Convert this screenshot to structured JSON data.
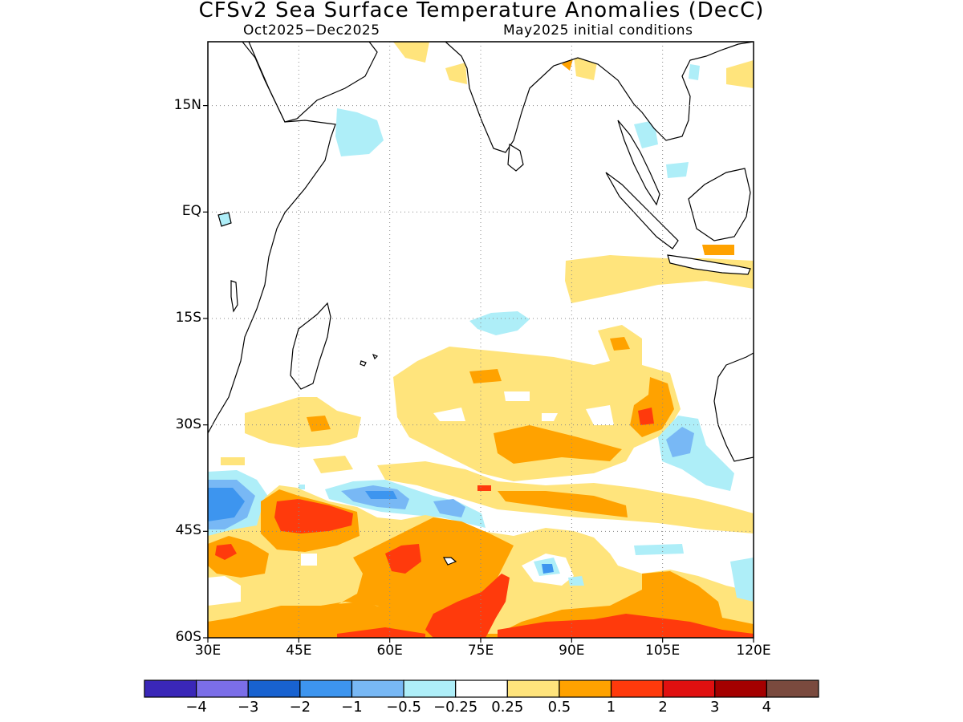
{
  "title": "CFSv2 Sea Surface Temperature Anomalies (DecC)",
  "subtitle_left": "Oct2025−Dec2025",
  "subtitle_right": "May2025 initial conditions",
  "lat_labels": [
    "15N",
    "EQ",
    "15S",
    "30S",
    "45S",
    "60S"
  ],
  "lon_labels": [
    "30E",
    "45E",
    "60E",
    "75E",
    "90E",
    "105E",
    "120E"
  ],
  "colorbar": {
    "colors": [
      "#3a27b8",
      "#7b6ee8",
      "#1862d0",
      "#3d95ef",
      "#78b8f5",
      "#aeeef8",
      "#ffffff",
      "#ffe47c",
      "#ffa200",
      "#ff3a0c",
      "#e01010",
      "#a40000",
      "#7a4a3e"
    ],
    "labels": [
      "−4",
      "−3",
      "−2",
      "−1",
      "−0.5",
      "−0.25",
      "0.25",
      "0.5",
      "1",
      "2",
      "3",
      "4"
    ]
  },
  "map_extent": {
    "lon": [
      30,
      120
    ],
    "lat": [
      -60,
      24
    ]
  }
}
